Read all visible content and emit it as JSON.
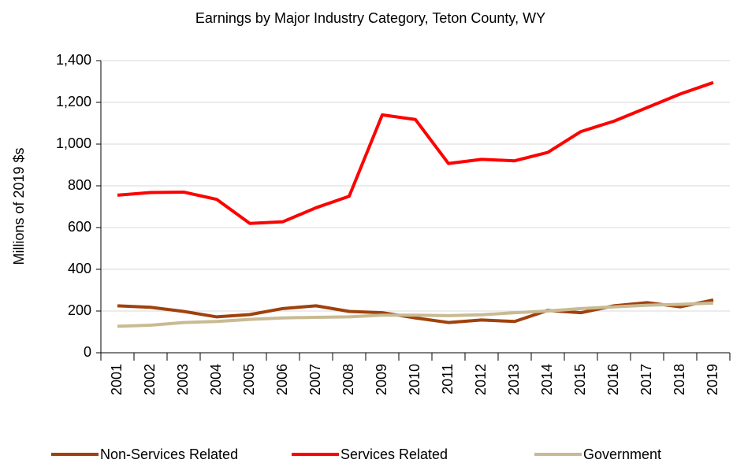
{
  "chart_data": {
    "type": "line",
    "title": "Earnings by Major Industry Category, Teton County, WY",
    "ylabel": "Millions of 2019 $s",
    "categories": [
      "2001",
      "2002",
      "2003",
      "2004",
      "2005",
      "2006",
      "2007",
      "2008",
      "2009",
      "2010",
      "2011",
      "2012",
      "2013",
      "2014",
      "2015",
      "2016",
      "2017",
      "2018",
      "2019"
    ],
    "series": [
      {
        "name": "Non-Services Related",
        "color": "#a0410d",
        "values": [
          225,
          218,
          198,
          172,
          183,
          212,
          225,
          198,
          192,
          167,
          145,
          157,
          150,
          203,
          192,
          225,
          240,
          220,
          253
        ]
      },
      {
        "name": "Services Related",
        "color": "#ff0000",
        "values": [
          755,
          768,
          770,
          735,
          620,
          628,
          695,
          750,
          1140,
          1118,
          907,
          927,
          920,
          960,
          1060,
          1110,
          1175,
          1240,
          1295
        ]
      },
      {
        "name": "Government",
        "color": "#c8bb93",
        "values": [
          127,
          132,
          145,
          150,
          160,
          167,
          170,
          172,
          180,
          180,
          178,
          182,
          192,
          200,
          212,
          220,
          228,
          232,
          238
        ]
      }
    ],
    "ylim": [
      0,
      1400
    ],
    "yticks": [
      0,
      200,
      400,
      600,
      800,
      {
        "value": 1000,
        "label": "1,000"
      },
      {
        "value": 1200,
        "label": "1,200"
      },
      {
        "value": 1400,
        "label": "1,400"
      }
    ],
    "grid": true,
    "legend": "bottom"
  }
}
